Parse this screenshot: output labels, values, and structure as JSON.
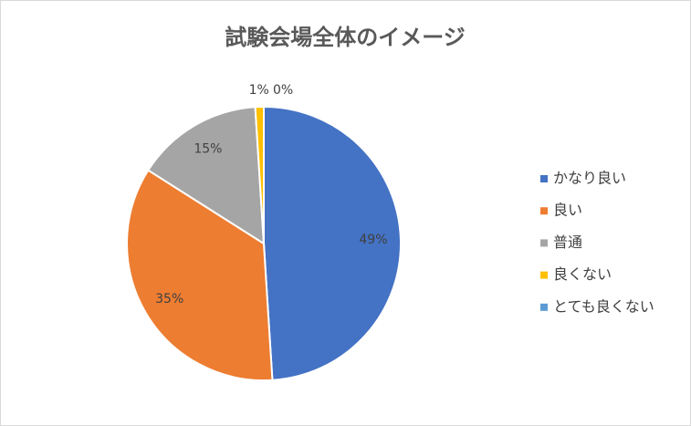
{
  "chart_data": {
    "type": "pie",
    "title": "試験会場全体のイメージ",
    "categories": [
      "かなり良い",
      "良い",
      "普通",
      "良くない",
      "とても良くない"
    ],
    "values": [
      49,
      35,
      15,
      1,
      0
    ],
    "value_labels": [
      "49%",
      "35%",
      "15%",
      "1%",
      "0%"
    ],
    "colors": [
      "#4472c4",
      "#ed7d31",
      "#a5a5a5",
      "#ffc000",
      "#5b9bd5"
    ],
    "legend": "right"
  }
}
